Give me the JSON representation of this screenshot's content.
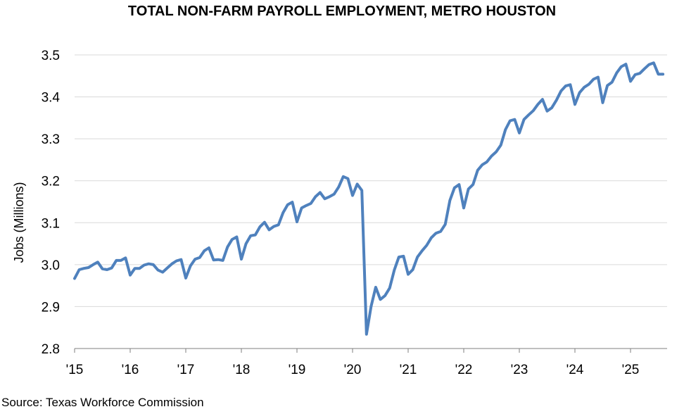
{
  "chart_data": {
    "type": "line",
    "title": "TOTAL NON-FARM PAYROLL EMPLOYMENT, METRO HOUSTON",
    "ylabel": "Jobs (Millions)",
    "xlabel": "",
    "source": "Source: Texas Workforce Commission",
    "ylim": [
      2.8,
      3.5
    ],
    "yticks": [
      "2.8",
      "2.9",
      "3.0",
      "3.1",
      "3.2",
      "3.3",
      "3.4",
      "3.5"
    ],
    "xticks": [
      "'15",
      "'16",
      "'17",
      "'18",
      "'19",
      "'20",
      "'21",
      "'22",
      "'23",
      "'24",
      "'25"
    ],
    "grid": true,
    "legend": "none",
    "colors": {
      "line": "#4f81bd",
      "grid": "#d9d9d9",
      "axis": "#7f7f7f"
    },
    "series": [
      {
        "start": "2015-01",
        "frequency": "monthly",
        "values": [
          2.967,
          2.988,
          2.991,
          2.993,
          3.0,
          3.006,
          2.99,
          2.988,
          2.992,
          3.01,
          3.01,
          3.016,
          2.975,
          2.991,
          2.991,
          2.999,
          3.002,
          3.0,
          2.987,
          2.982,
          2.992,
          3.002,
          3.009,
          3.012,
          2.968,
          2.997,
          3.013,
          3.017,
          3.033,
          3.04,
          3.011,
          3.012,
          3.01,
          3.042,
          3.06,
          3.066,
          3.013,
          3.05,
          3.069,
          3.071,
          3.09,
          3.101,
          3.083,
          3.091,
          3.095,
          3.124,
          3.143,
          3.149,
          3.102,
          3.135,
          3.141,
          3.146,
          3.162,
          3.172,
          3.157,
          3.162,
          3.168,
          3.185,
          3.21,
          3.205,
          3.165,
          3.192,
          3.177,
          2.834,
          2.9,
          2.946,
          2.917,
          2.926,
          2.944,
          2.987,
          3.018,
          3.02,
          2.977,
          2.988,
          3.018,
          3.033,
          3.046,
          3.064,
          3.075,
          3.079,
          3.096,
          3.153,
          3.183,
          3.191,
          3.135,
          3.18,
          3.191,
          3.225,
          3.238,
          3.245,
          3.259,
          3.269,
          3.285,
          3.322,
          3.343,
          3.346,
          3.314,
          3.346,
          3.357,
          3.367,
          3.382,
          3.394,
          3.366,
          3.374,
          3.392,
          3.414,
          3.426,
          3.429,
          3.382,
          3.41,
          3.423,
          3.43,
          3.442,
          3.447,
          3.386,
          3.427,
          3.435,
          3.457,
          3.472,
          3.478,
          3.437,
          3.453,
          3.456,
          3.467,
          3.477,
          3.481,
          3.454,
          3.454
        ]
      }
    ]
  }
}
